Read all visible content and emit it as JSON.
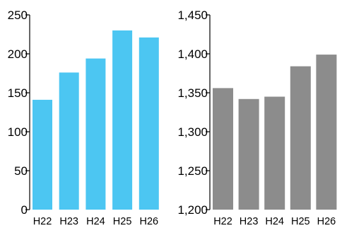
{
  "chart_data": [
    {
      "type": "bar",
      "title": "",
      "xlabel": "",
      "ylabel": "",
      "categories": [
        "H22",
        "H23",
        "H24",
        "H25",
        "H26"
      ],
      "values": [
        141,
        176,
        194,
        230,
        221
      ],
      "ylim": [
        0,
        250
      ],
      "yticks": [
        0,
        50,
        100,
        150,
        200,
        250
      ],
      "ytick_labels": [
        "0",
        "50",
        "100",
        "150",
        "200",
        "250"
      ],
      "grid": false,
      "legend": "none",
      "color": "#4cc6f2"
    },
    {
      "type": "bar",
      "title": "",
      "xlabel": "",
      "ylabel": "",
      "categories": [
        "H22",
        "H23",
        "H24",
        "H25",
        "H26"
      ],
      "values": [
        1356,
        1342,
        1345,
        1384,
        1399
      ],
      "ylim": [
        1200,
        1450
      ],
      "yticks": [
        1200,
        1250,
        1300,
        1350,
        1400,
        1450
      ],
      "ytick_labels": [
        "1,200",
        "1,250",
        "1,300",
        "1,350",
        "1,400",
        "1,450"
      ],
      "grid": false,
      "legend": "none",
      "color": "#8c8c8c"
    }
  ]
}
